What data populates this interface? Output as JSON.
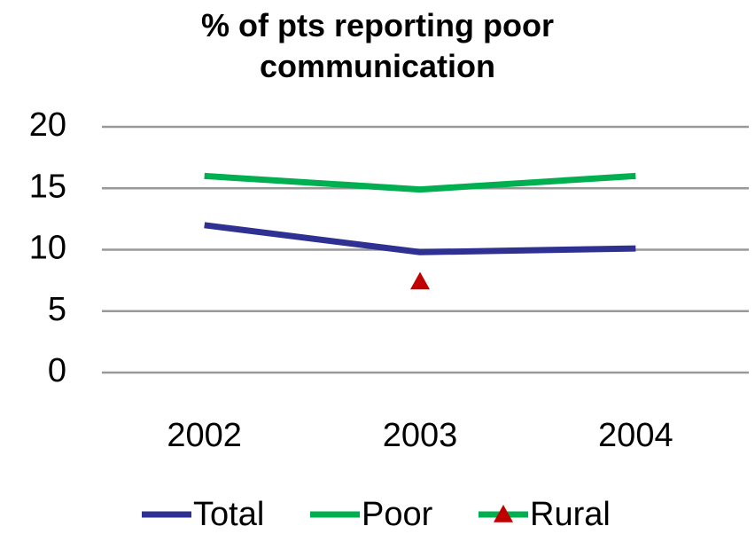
{
  "chart_data": {
    "type": "line",
    "title": "% of pts reporting poor communication",
    "categories": [
      "2002",
      "2003",
      "2004"
    ],
    "series": [
      {
        "name": "Total",
        "color": "#2e3192",
        "values": [
          12,
          9.8,
          10.1
        ]
      },
      {
        "name": "Poor",
        "color": "#00b050",
        "values": [
          16,
          14.9,
          16
        ]
      },
      {
        "name": "Rural",
        "color": "#00b050",
        "marker": "triangle",
        "marker_color": "#c00000",
        "values": [
          null,
          7.4,
          null
        ]
      }
    ],
    "ylim": [
      0,
      20
    ],
    "yticks": [
      0,
      5,
      10,
      15,
      20
    ],
    "grid": true,
    "legend": "bottom"
  }
}
